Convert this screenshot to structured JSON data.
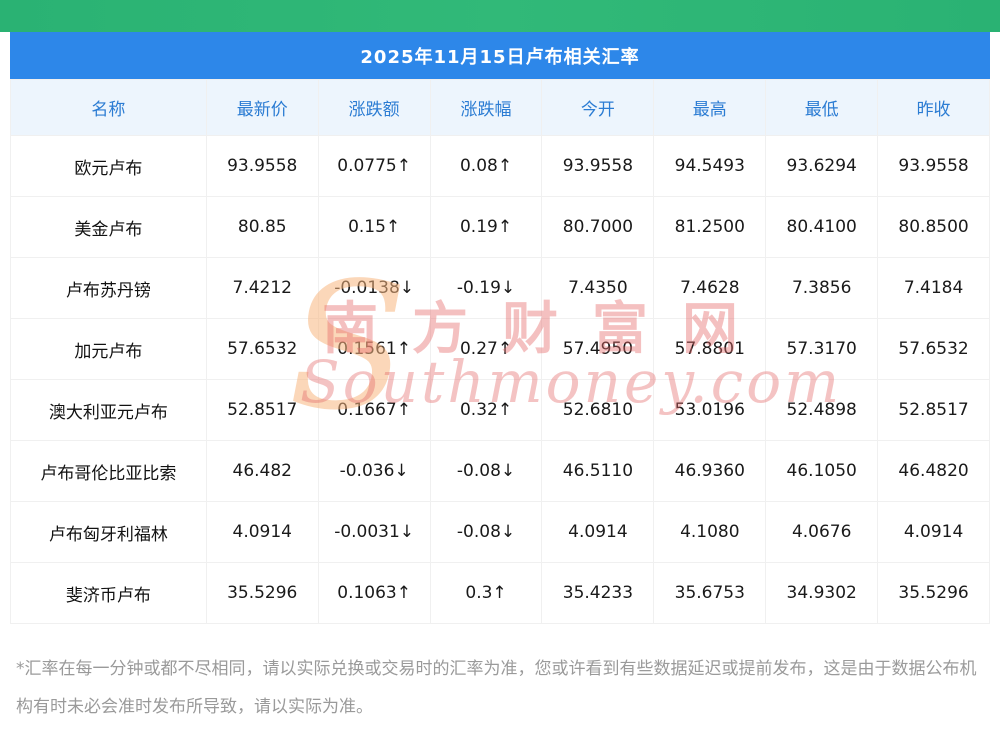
{
  "top_bar": {
    "color": "#2ab273"
  },
  "header": {
    "title": "2025年11月15日卢布相关汇率",
    "bg_color": "#2d87e9",
    "text_color": "#ffffff"
  },
  "chart_data": {
    "type": "table",
    "title": "2025年11月15日卢布相关汇率",
    "columns": [
      "名称",
      "最新价",
      "涨跌额",
      "涨跌幅",
      "今开",
      "最高",
      "最低",
      "昨收"
    ],
    "rows": [
      {
        "name": "欧元卢布",
        "last": "93.9558",
        "change": "0.0775↑",
        "change_pct": "0.08↑",
        "open": "93.9558",
        "high": "94.5493",
        "low": "93.6294",
        "prev_close": "93.9558",
        "trend": "up"
      },
      {
        "name": "美金卢布",
        "last": "80.85",
        "change": "0.15↑",
        "change_pct": "0.19↑",
        "open": "80.7000",
        "high": "81.2500",
        "low": "80.4100",
        "prev_close": "80.8500",
        "trend": "up"
      },
      {
        "name": "卢布苏丹镑",
        "last": "7.4212",
        "change": "-0.0138↓",
        "change_pct": "-0.19↓",
        "open": "7.4350",
        "high": "7.4628",
        "low": "7.3856",
        "prev_close": "7.4184",
        "trend": "down"
      },
      {
        "name": "加元卢布",
        "last": "57.6532",
        "change": "0.1561↑",
        "change_pct": "0.27↑",
        "open": "57.4950",
        "high": "57.8801",
        "low": "57.3170",
        "prev_close": "57.6532",
        "trend": "up"
      },
      {
        "name": "澳大利亚元卢布",
        "last": "52.8517",
        "change": "0.1667↑",
        "change_pct": "0.32↑",
        "open": "52.6810",
        "high": "53.0196",
        "low": "52.4898",
        "prev_close": "52.8517",
        "trend": "up"
      },
      {
        "name": "卢布哥伦比亚比索",
        "last": "46.482",
        "change": "-0.036↓",
        "change_pct": "-0.08↓",
        "open": "46.5110",
        "high": "46.9360",
        "low": "46.1050",
        "prev_close": "46.4820",
        "trend": "down"
      },
      {
        "name": "卢布匈牙利福林",
        "last": "4.0914",
        "change": "-0.0031↓",
        "change_pct": "-0.08↓",
        "open": "4.0914",
        "high": "4.1080",
        "low": "4.0676",
        "prev_close": "4.0914",
        "trend": "down"
      },
      {
        "name": "斐济币卢布",
        "last": "35.5296",
        "change": "0.1063↑",
        "change_pct": "0.3↑",
        "open": "35.4233",
        "high": "35.6753",
        "low": "34.9302",
        "prev_close": "35.5296",
        "trend": "up"
      }
    ],
    "colors": {
      "up": "#e61414",
      "down": "#0b9b0b",
      "header_text": "#2b7cd3",
      "header_bg": "#edf5fd"
    }
  },
  "watermark": {
    "cn": "南方财富网",
    "en": "Southmoney.com",
    "s_glyph": "S"
  },
  "footer": {
    "note": "*汇率在每一分钟或都不尽相同，请以实际兑换或交易时的汇率为准，您或许看到有些数据延迟或提前发布，这是由于数据公布机构有时未必会准时发布所导致，请以实际为准。"
  }
}
